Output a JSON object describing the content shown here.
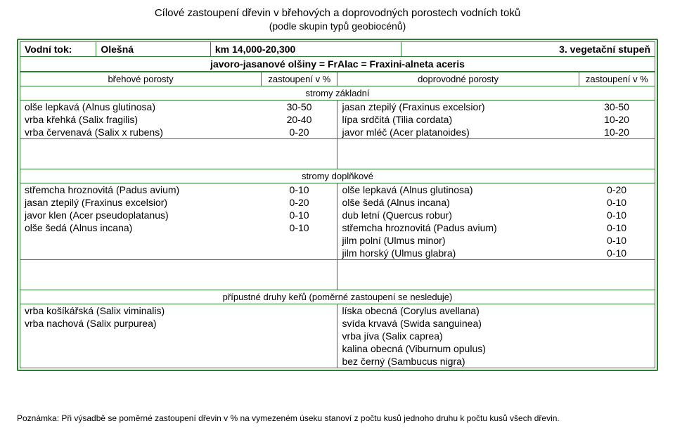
{
  "title": "Cílové zastoupení dřevin v břehových a doprovodných porostech vodních toků",
  "subtitle": "(podle skupin typů geobiocénů)",
  "header": {
    "stream_label": "Vodní tok:",
    "stream_name": "Olešná",
    "km_range": "km 14,000-20,300",
    "veg_grade": "3. vegetační stupeň",
    "association": "javoro-jasanové olšiny = FrAlac = Fraxini-alneta aceris"
  },
  "subheader": {
    "bank_label": "břehové porosty",
    "pct_label_l": "zastoupení v %",
    "accomp_label": "doprovodné porosty",
    "pct_label_r": "zastoupení v %"
  },
  "sections": {
    "basic": {
      "band": "stromy základní",
      "left": [
        {
          "sp": "olše lepkavá   (Alnus glutinosa)",
          "v": "30-50"
        },
        {
          "sp": "vrba křehká   (Salix fragilis)",
          "v": "20-40"
        },
        {
          "sp": "vrba červenavá   (Salix x rubens)",
          "v": "0-20"
        }
      ],
      "right": [
        {
          "sp": "jasan ztepilý   (Fraxinus excelsior)",
          "v": "30-50"
        },
        {
          "sp": "lípa srdčitá   (Tilia cordata)",
          "v": "10-20"
        },
        {
          "sp": "javor mléč   (Acer platanoides)",
          "v": "10-20"
        }
      ]
    },
    "suppl": {
      "band": "stromy doplňkové",
      "left": [
        {
          "sp": "střemcha hroznovitá   (Padus avium)",
          "v": "0-10"
        },
        {
          "sp": "jasan ztepilý   (Fraxinus excelsior)",
          "v": "0-20"
        },
        {
          "sp": "javor klen   (Acer pseudoplatanus)",
          "v": "0-10"
        },
        {
          "sp": "olše šedá   (Alnus incana)",
          "v": "0-10"
        }
      ],
      "right": [
        {
          "sp": "olše lepkavá   (Alnus glutinosa)",
          "v": "0-20"
        },
        {
          "sp": "olše šedá   (Alnus incana)",
          "v": "0-10"
        },
        {
          "sp": "dub letní   (Quercus robur)",
          "v": "0-10"
        },
        {
          "sp": "střemcha hroznovitá   (Padus avium)",
          "v": "0-10"
        },
        {
          "sp": "jilm polní   (Ulmus minor)",
          "v": "0-10"
        },
        {
          "sp": "jilm horský (Ulmus glabra)",
          "v": "0-10"
        }
      ]
    },
    "shrubs": {
      "band": "přípustné druhy keřů (poměrné zastoupení se nesleduje)",
      "left": [
        {
          "sp": "vrba košíkářská   (Salix viminalis)",
          "v": ""
        },
        {
          "sp": "vrba nachová   (Salix purpurea)",
          "v": ""
        }
      ],
      "right": [
        {
          "sp": "líska obecná   (Corylus avellana)",
          "v": ""
        },
        {
          "sp": "svída krvavá   (Swida sanguinea)",
          "v": ""
        },
        {
          "sp": "vrba jíva   (Salix caprea)",
          "v": ""
        },
        {
          "sp": "kalina obecná   (Viburnum opulus)",
          "v": ""
        },
        {
          "sp": "bez černý   (Sambucus nigra)",
          "v": ""
        }
      ]
    }
  },
  "footnote": "Poznámka: Při výsadbě se poměrné zastoupení dřevin v % na vymezeném úseku stanoví z počtu kusů jednoho druhu k počtu kusů všech dřevin.",
  "style": {
    "border_color": "#2e7d32",
    "background": "#ffffff",
    "text_color": "#000000",
    "title_fontsize": 15,
    "body_fontsize": 14,
    "footnote_fontsize": 12
  }
}
